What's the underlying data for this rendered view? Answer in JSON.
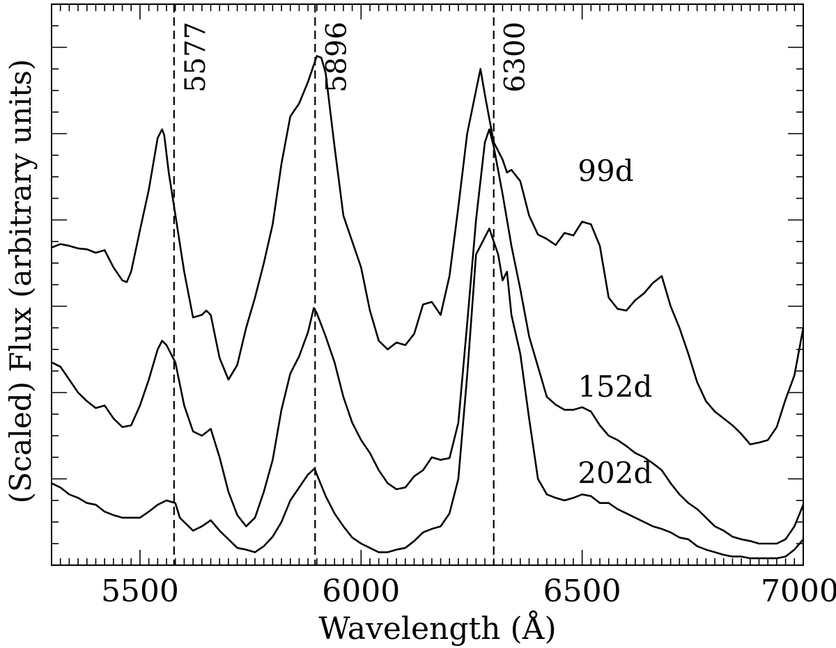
{
  "chart_data": {
    "type": "line",
    "xlabel": "Wavelength (Å)",
    "ylabel": "(Scaled) Flux (arbitrary units)",
    "xlim": [
      5300,
      7000
    ],
    "ylim": [
      0,
      6.5
    ],
    "x_ticks": [
      5500,
      6000,
      6500,
      7000
    ],
    "x_tick_labels": [
      "5500",
      "6000",
      "6500",
      "7000"
    ],
    "y_tick_labels_shown": false,
    "grid": false,
    "legend": "none",
    "reference_lines": [
      {
        "x": 5577,
        "label": "5577"
      },
      {
        "x": 5896,
        "label": "5896"
      },
      {
        "x": 6300,
        "label": "6300"
      }
    ],
    "series": [
      {
        "name": "99d",
        "label_at": {
          "x": 6490,
          "y": 4.45
        },
        "x": [
          5300,
          5320,
          5340,
          5360,
          5380,
          5400,
          5420,
          5440,
          5460,
          5470,
          5480,
          5500,
          5520,
          5540,
          5550,
          5555,
          5565,
          5580,
          5600,
          5620,
          5640,
          5650,
          5660,
          5680,
          5700,
          5720,
          5740,
          5760,
          5780,
          5800,
          5820,
          5840,
          5860,
          5880,
          5900,
          5910,
          5920,
          5940,
          5960,
          5980,
          6000,
          6020,
          6040,
          6060,
          6080,
          6100,
          6120,
          6140,
          6160,
          6180,
          6200,
          6220,
          6240,
          6260,
          6270,
          6280,
          6300,
          6320,
          6330,
          6340,
          6360,
          6380,
          6400,
          6420,
          6440,
          6460,
          6480,
          6500,
          6520,
          6540,
          6560,
          6580,
          6600,
          6620,
          6640,
          6660,
          6680,
          6700,
          6720,
          6740,
          6760,
          6780,
          6800,
          6820,
          6840,
          6860,
          6880,
          6900,
          6920,
          6940,
          6960,
          6980,
          7000
        ],
        "values": [
          3.68,
          3.72,
          3.7,
          3.67,
          3.66,
          3.62,
          3.65,
          3.45,
          3.3,
          3.28,
          3.4,
          3.88,
          4.35,
          4.95,
          5.05,
          4.98,
          4.55,
          4.06,
          3.4,
          2.87,
          2.9,
          2.95,
          2.9,
          2.4,
          2.15,
          2.32,
          2.75,
          3.1,
          3.5,
          3.95,
          4.65,
          5.2,
          5.35,
          5.6,
          5.9,
          5.88,
          5.7,
          4.85,
          4.05,
          3.75,
          3.45,
          2.95,
          2.6,
          2.5,
          2.58,
          2.55,
          2.68,
          3.02,
          3.05,
          2.9,
          3.35,
          4.15,
          5.0,
          5.5,
          5.75,
          5.45,
          4.9,
          4.7,
          4.55,
          4.58,
          4.45,
          4.05,
          3.83,
          3.78,
          3.71,
          3.85,
          3.82,
          3.98,
          3.95,
          3.7,
          3.1,
          2.97,
          2.95,
          3.07,
          3.15,
          3.27,
          3.35,
          3.0,
          2.75,
          2.45,
          2.12,
          1.9,
          1.78,
          1.7,
          1.62,
          1.52,
          1.4,
          1.42,
          1.45,
          1.6,
          1.92,
          2.2,
          2.75
        ]
      },
      {
        "name": "152d",
        "label_at": {
          "x": 6490,
          "y": 1.95
        },
        "x": [
          5300,
          5320,
          5340,
          5360,
          5380,
          5400,
          5420,
          5440,
          5460,
          5480,
          5500,
          5520,
          5540,
          5550,
          5560,
          5580,
          5600,
          5620,
          5640,
          5660,
          5680,
          5700,
          5720,
          5740,
          5760,
          5780,
          5800,
          5820,
          5840,
          5860,
          5880,
          5893,
          5900,
          5920,
          5940,
          5960,
          5980,
          6000,
          6020,
          6040,
          6060,
          6080,
          6100,
          6120,
          6140,
          6160,
          6180,
          6200,
          6220,
          6240,
          6260,
          6280,
          6290,
          6300,
          6320,
          6340,
          6360,
          6380,
          6400,
          6420,
          6440,
          6460,
          6480,
          6500,
          6520,
          6540,
          6560,
          6580,
          6600,
          6620,
          6640,
          6660,
          6680,
          6700,
          6720,
          6740,
          6760,
          6780,
          6800,
          6820,
          6840,
          6860,
          6880,
          6900,
          6920,
          6940,
          6960,
          6980,
          7000
        ],
        "values": [
          2.35,
          2.3,
          2.15,
          2.0,
          1.9,
          1.82,
          1.85,
          1.7,
          1.6,
          1.62,
          1.85,
          2.15,
          2.5,
          2.6,
          2.55,
          2.35,
          1.85,
          1.55,
          1.5,
          1.58,
          1.25,
          0.85,
          0.58,
          0.45,
          0.55,
          0.85,
          1.22,
          1.8,
          2.22,
          2.42,
          2.7,
          2.98,
          2.92,
          2.65,
          2.35,
          1.95,
          1.65,
          1.45,
          1.3,
          1.1,
          0.95,
          0.88,
          0.9,
          1.03,
          1.1,
          1.25,
          1.22,
          1.24,
          1.65,
          2.8,
          4.0,
          4.9,
          5.05,
          4.85,
          4.3,
          3.7,
          3.2,
          2.65,
          2.3,
          1.95,
          1.86,
          1.8,
          1.8,
          1.83,
          1.78,
          1.62,
          1.5,
          1.45,
          1.38,
          1.3,
          1.25,
          1.18,
          1.1,
          0.95,
          0.82,
          0.72,
          0.65,
          0.55,
          0.45,
          0.4,
          0.33,
          0.3,
          0.28,
          0.25,
          0.25,
          0.25,
          0.3,
          0.45,
          0.7
        ]
      },
      {
        "name": "202d",
        "label_at": {
          "x": 6490,
          "y": 0.95
        },
        "x": [
          5300,
          5320,
          5340,
          5360,
          5380,
          5400,
          5420,
          5440,
          5460,
          5480,
          5500,
          5520,
          5540,
          5560,
          5580,
          5590,
          5600,
          5620,
          5640,
          5660,
          5680,
          5700,
          5720,
          5740,
          5760,
          5780,
          5800,
          5820,
          5840,
          5860,
          5880,
          5895,
          5900,
          5920,
          5940,
          5960,
          5980,
          6000,
          6020,
          6040,
          6060,
          6080,
          6100,
          6120,
          6140,
          6160,
          6180,
          6200,
          6220,
          6240,
          6260,
          6280,
          6290,
          6300,
          6310,
          6320,
          6330,
          6340,
          6360,
          6380,
          6400,
          6420,
          6440,
          6460,
          6480,
          6500,
          6520,
          6540,
          6560,
          6580,
          6600,
          6620,
          6640,
          6660,
          6680,
          6700,
          6720,
          6740,
          6760,
          6780,
          6800,
          6820,
          6840,
          6860,
          6880,
          6900,
          6920,
          6940,
          6960,
          6980,
          7000
        ],
        "values": [
          0.95,
          0.9,
          0.82,
          0.78,
          0.72,
          0.7,
          0.62,
          0.58,
          0.55,
          0.55,
          0.55,
          0.62,
          0.7,
          0.75,
          0.72,
          0.55,
          0.5,
          0.4,
          0.45,
          0.52,
          0.4,
          0.3,
          0.2,
          0.18,
          0.15,
          0.22,
          0.33,
          0.5,
          0.75,
          0.9,
          1.05,
          1.12,
          1.05,
          0.8,
          0.6,
          0.45,
          0.32,
          0.25,
          0.2,
          0.15,
          0.15,
          0.18,
          0.2,
          0.28,
          0.38,
          0.42,
          0.45,
          0.6,
          1.0,
          2.2,
          3.6,
          3.8,
          3.9,
          3.75,
          3.6,
          3.3,
          3.4,
          2.9,
          2.45,
          1.7,
          1.0,
          0.82,
          0.78,
          0.75,
          0.78,
          0.82,
          0.8,
          0.72,
          0.72,
          0.65,
          0.6,
          0.55,
          0.5,
          0.45,
          0.42,
          0.38,
          0.32,
          0.3,
          0.22,
          0.18,
          0.15,
          0.12,
          0.1,
          0.1,
          0.08,
          0.08,
          0.08,
          0.08,
          0.1,
          0.18,
          0.3
        ]
      }
    ]
  }
}
